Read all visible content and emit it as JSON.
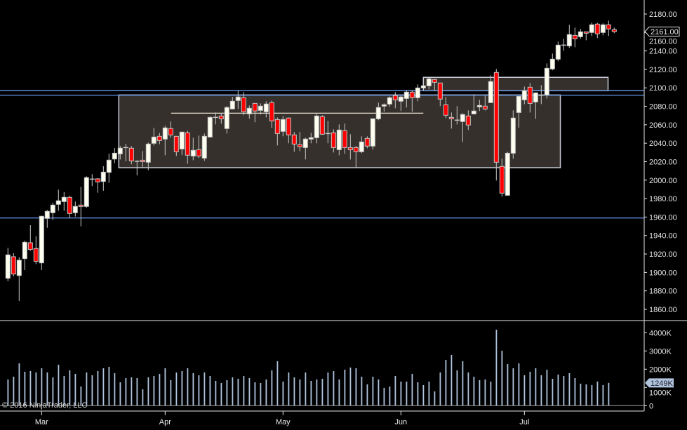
{
  "chart_data": {
    "type": "candlestick",
    "instrument_panel": "price",
    "price_axis": {
      "range": [
        1850,
        2190
      ],
      "ticks": [
        "2180.00",
        "2160.00",
        "2140.00",
        "2120.00",
        "2100.00",
        "2080.00",
        "2060.00",
        "2040.00",
        "2020.00",
        "2000.00",
        "1980.00",
        "1960.00",
        "1940.00",
        "1920.00",
        "1900.00",
        "1880.00",
        "1860.00"
      ]
    },
    "volume_axis": {
      "range": [
        0,
        4650
      ],
      "unit": "K",
      "ticks": [
        "4000K",
        "3000K",
        "2000K",
        "1000K",
        "0"
      ],
      "tick_values": [
        4000,
        3000,
        2000,
        1000,
        0
      ]
    },
    "x_axis": {
      "months": [
        {
          "label": "Mar",
          "index": 6
        },
        {
          "label": "Apr",
          "index": 28
        },
        {
          "label": "May",
          "index": 49
        },
        {
          "label": "Jun",
          "index": 70
        },
        {
          "label": "Jul",
          "index": 92
        }
      ]
    },
    "current_price_label": "2161.00",
    "current_price": 2161.0,
    "current_volume_label": "1249K",
    "current_volume": 1249,
    "ohlc": [
      [
        1893.7,
        1926.7,
        1890.4,
        1919.0
      ],
      [
        1917.0,
        1920.8,
        1895.7,
        1898.3
      ],
      [
        1896.7,
        1916.3,
        1869.1,
        1913.2
      ],
      [
        1915.0,
        1934.3,
        1902.6,
        1932.7
      ],
      [
        1932.2,
        1951.2,
        1923.4,
        1924.9
      ],
      [
        1925.9,
        1939.1,
        1908.9,
        1912.0
      ],
      [
        1910.4,
        1960.9,
        1902.6,
        1960.9
      ],
      [
        1958.6,
        1967.7,
        1948.4,
        1966.2
      ],
      [
        1964.7,
        1975.3,
        1956.8,
        1973.0
      ],
      [
        1973.8,
        1989.7,
        1966.7,
        1977.6
      ],
      [
        1976.8,
        1987.0,
        1966.7,
        1981.4
      ],
      [
        1981.4,
        1982.9,
        1958.8,
        1963.9
      ],
      [
        1964.7,
        1976.8,
        1960.6,
        1971.5
      ],
      [
        1973.0,
        1992.8,
        1950.0,
        1971.5
      ],
      [
        1971.5,
        2004.2,
        1970.0,
        2002.7
      ],
      [
        2001.1,
        2006.5,
        1993.5,
        2001.1
      ],
      [
        2001.4,
        2002.1,
        1986.4,
        1998.1
      ],
      [
        1998.6,
        2015.1,
        1988.5,
        2008.7
      ],
      [
        2008.5,
        2028.8,
        1997.1,
        2021.7
      ],
      [
        2022.9,
        2034.8,
        2018.4,
        2029.2
      ],
      [
        2028.5,
        2036.9,
        2022.4,
        2034.6
      ],
      [
        2035.3,
        2039.4,
        2020.4,
        2035.3
      ],
      [
        2034.6,
        2036.9,
        2017.1,
        2020.9
      ],
      [
        2020.4,
        2021.6,
        2005.2,
        2020.4
      ],
      [
        2021.6,
        2031.5,
        2014.0,
        2020.1
      ],
      [
        2019.4,
        2040.7,
        2010.7,
        2039.1
      ],
      [
        2039.9,
        2056.6,
        2037.6,
        2046.7
      ],
      [
        2047.5,
        2051.3,
        2038.9,
        2042.9
      ],
      [
        2044.5,
        2058.9,
        2027.0,
        2056.6
      ],
      [
        2055.9,
        2063.5,
        2046.0,
        2049.0
      ],
      [
        2047.5,
        2047.5,
        2026.2,
        2030.8
      ],
      [
        2033.8,
        2052.1,
        2027.0,
        2052.1
      ],
      [
        2051.3,
        2053.6,
        2017.8,
        2027.0
      ],
      [
        2026.2,
        2046.0,
        2021.6,
        2032.3
      ],
      [
        2033.0,
        2048.3,
        2023.9,
        2026.2
      ],
      [
        2023.9,
        2050.5,
        2020.9,
        2047.5
      ],
      [
        2046.7,
        2069.0,
        2046.7,
        2068.0
      ],
      [
        2068.0,
        2073.3,
        2060.4,
        2068.0
      ],
      [
        2069.5,
        2071.8,
        2061.2,
        2066.5
      ],
      [
        2055.9,
        2080.2,
        2050.5,
        2078.7
      ],
      [
        2077.1,
        2090.1,
        2077.1,
        2085.5
      ],
      [
        2086.3,
        2096.9,
        2077.1,
        2090.1
      ],
      [
        2089.3,
        2095.4,
        2070.3,
        2074.1
      ],
      [
        2071.8,
        2080.9,
        2066.5,
        2077.9
      ],
      [
        2083.2,
        2083.2,
        2062.7,
        2074.9
      ],
      [
        2075.6,
        2083.2,
        2071.1,
        2080.2
      ],
      [
        2074.1,
        2085.5,
        2068.0,
        2082.5
      ],
      [
        2084.0,
        2086.3,
        2056.6,
        2064.2
      ],
      [
        2065.7,
        2068.0,
        2037.6,
        2050.5
      ],
      [
        2052.8,
        2069.5,
        2047.5,
        2065.7
      ],
      [
        2067.3,
        2068.0,
        2039.9,
        2049.0
      ],
      [
        2049.0,
        2052.1,
        2030.8,
        2039.1
      ],
      [
        2038.4,
        2052.1,
        2031.5,
        2036.1
      ],
      [
        2035.3,
        2046.0,
        2022.4,
        2044.5
      ],
      [
        2044.5,
        2051.3,
        2039.9,
        2046.0
      ],
      [
        2046.0,
        2071.8,
        2039.9,
        2069.5
      ],
      [
        2068.8,
        2070.3,
        2049.0,
        2049.8
      ],
      [
        2050.5,
        2064.2,
        2039.9,
        2050.5
      ],
      [
        2051.3,
        2055.1,
        2030.0,
        2035.3
      ],
      [
        2033.0,
        2060.4,
        2027.0,
        2054.3
      ],
      [
        2053.6,
        2061.2,
        2028.5,
        2035.3
      ],
      [
        2035.3,
        2049.8,
        2022.4,
        2033.0
      ],
      [
        2035.3,
        2036.9,
        2014.0,
        2030.8
      ],
      [
        2030.8,
        2047.5,
        2029.2,
        2041.4
      ],
      [
        2045.2,
        2047.5,
        2034.6,
        2036.9
      ],
      [
        2036.9,
        2066.5,
        2033.0,
        2066.5
      ],
      [
        2066.5,
        2084.0,
        2065.0,
        2078.7
      ],
      [
        2080.2,
        2083.2,
        2074.1,
        2081.7
      ],
      [
        2082.4,
        2090.8,
        2079.4,
        2089.3
      ],
      [
        2091.6,
        2095.4,
        2077.9,
        2087.0
      ],
      [
        2085.5,
        2091.6,
        2074.9,
        2090.1
      ],
      [
        2088.5,
        2097.7,
        2078.7,
        2095.4
      ],
      [
        2095.4,
        2097.7,
        2074.1,
        2089.3
      ],
      [
        2089.3,
        2103.7,
        2085.5,
        2099.9
      ],
      [
        2099.9,
        2103.0,
        2096.9,
        2102.2
      ],
      [
        2102.2,
        2111.3,
        2098.4,
        2109.8
      ],
      [
        2109.1,
        2109.8,
        2096.9,
        2106.0
      ],
      [
        2105.3,
        2105.3,
        2080.2,
        2087.8
      ],
      [
        2081.7,
        2090.1,
        2067.3,
        2070.3
      ],
      [
        2068.0,
        2073.3,
        2055.9,
        2066.5
      ],
      [
        2065.0,
        2080.2,
        2060.4,
        2065.0
      ],
      [
        2063.5,
        2072.6,
        2041.4,
        2071.1
      ],
      [
        2069.5,
        2075.6,
        2054.3,
        2059.7
      ],
      [
        2071.8,
        2093.1,
        2071.1,
        2074.9
      ],
      [
        2079.4,
        2087.0,
        2074.9,
        2080.9
      ],
      [
        2080.2,
        2091.6,
        2075.6,
        2077.1
      ],
      [
        2084.0,
        2113.6,
        2084.0,
        2106.8
      ],
      [
        2116.7,
        2120.5,
        1999.6,
        2019.4
      ],
      [
        2014.8,
        2023.2,
        1982.1,
        1985.9
      ],
      [
        1983.6,
        2030.7,
        1983.0,
        2029.2
      ],
      [
        2029.2,
        2075.6,
        2023.2,
        2067.3
      ],
      [
        2073.3,
        2090.8,
        2056.9,
        2090.8
      ],
      [
        2087.0,
        2101.4,
        2082.2,
        2096.9
      ],
      [
        2100.7,
        2105.3,
        2073.3,
        2083.2
      ],
      [
        2084.7,
        2094.6,
        2066.5,
        2094.6
      ],
      [
        2092.0,
        2103.0,
        2082.4,
        2092.0
      ],
      [
        2092.3,
        2126.5,
        2088.5,
        2121.2
      ],
      [
        2120.5,
        2137.2,
        2119.0,
        2131.1
      ],
      [
        2131.1,
        2150.1,
        2128.8,
        2146.3
      ],
      [
        2146.3,
        2153.1,
        2140.2,
        2146.3
      ],
      [
        2145.5,
        2168.3,
        2143.3,
        2157.7
      ],
      [
        2156.9,
        2165.3,
        2144.0,
        2153.1
      ],
      [
        2155.4,
        2163.8,
        2153.1,
        2160.7
      ],
      [
        2160.7,
        2161.0,
        2151.6,
        2159.2
      ],
      [
        2160.0,
        2170.6,
        2156.2,
        2168.3
      ],
      [
        2169.1,
        2170.5,
        2153.9,
        2158.5
      ],
      [
        2160.0,
        2169.9,
        2156.9,
        2168.3
      ],
      [
        2168.3,
        2172.9,
        2156.2,
        2163.8
      ],
      [
        2163.0,
        2165.3,
        2159.2,
        2161.0
      ]
    ],
    "volume_k": [
      1436,
      1590,
      2320,
      1859,
      1897,
      1820,
      2051,
      1820,
      1551,
      2244,
      1628,
      1936,
      1744,
      1051,
      1820,
      1667,
      1897,
      2051,
      2128,
      1782,
      1282,
      1513,
      1551,
      1513,
      897,
      1551,
      1628,
      1744,
      2051,
      1397,
      1820,
      1897,
      2051,
      1782,
      1667,
      1820,
      1628,
      1359,
      1244,
      1397,
      1551,
      1474,
      1628,
      1513,
      1282,
      1244,
      1436,
      1936,
      2436,
      1320,
      1820,
      1551,
      1436,
      1820,
      1359,
      1436,
      1474,
      1820,
      1897,
      1436,
      1974,
      2090,
      2051,
      1590,
      1167,
      1590,
      1436,
      974,
      1051,
      1628,
      1320,
      1320,
      1744,
      1282,
      1128,
      1320,
      782,
      1820,
      2513,
      2782,
      1936,
      2436,
      1820,
      1590,
      1397,
      1436,
      1320,
      4167,
      3013,
      2282,
      2051,
      2320,
      1667,
      1859,
      2051,
      1667,
      1974,
      1474,
      1705,
      1628,
      1782,
      1513,
      1205,
      1167,
      1128,
      1320,
      1128,
      1249,
      null
    ],
    "drawings": {
      "horizontal_lines": [
        2096.9,
        2092.0,
        1959.0
      ],
      "range_line": {
        "price": 2072.6,
        "from_index": 29,
        "to_index": 74
      },
      "rectangles": [
        {
          "name": "consolidation-box",
          "top": 2092.3,
          "bottom": 2013.5,
          "from_index": 19.75,
          "to_index": 98.4
        },
        {
          "name": "resistance-box",
          "top": 2111.4,
          "bottom": 2096.9,
          "from_index": 74,
          "to_index": 106.9
        }
      ]
    },
    "colors": {
      "up": "#fffff0",
      "down": "#ff0000",
      "outline": "#c8c8c8",
      "volume": "#b0c4de",
      "hline": "#6495ed",
      "box_fill": "#35302b",
      "box_border": "#c8ccd8",
      "background": "#000000"
    }
  },
  "footer": {
    "copyright": "© 2016 NinjaTrader, LLC"
  }
}
